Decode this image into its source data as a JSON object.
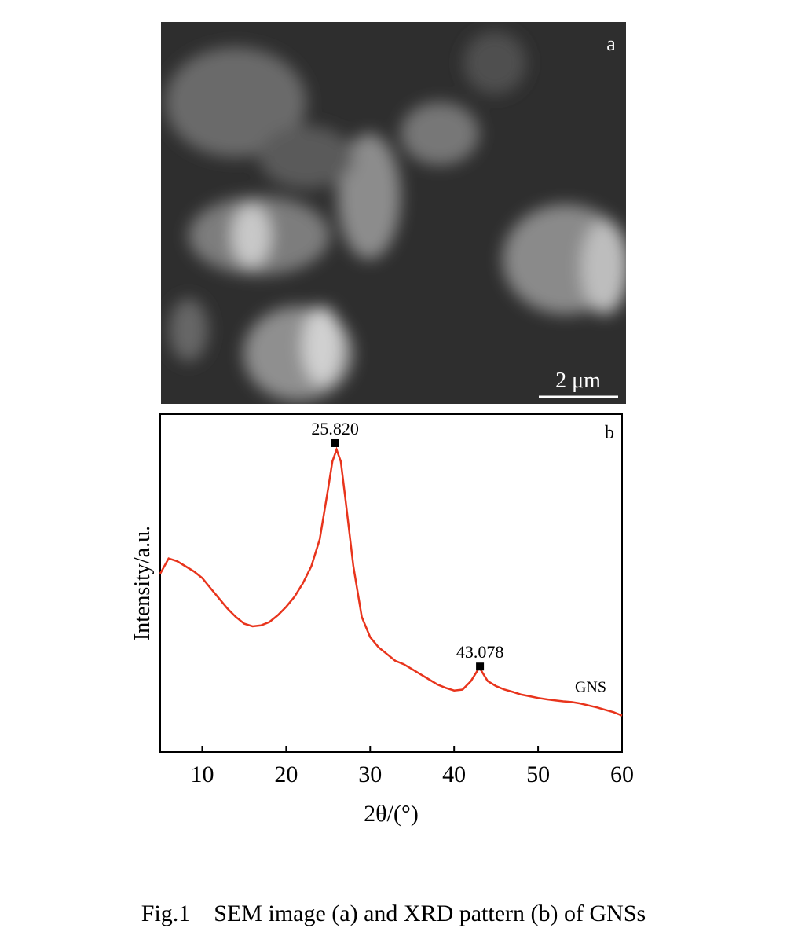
{
  "figure": {
    "caption": "Fig.1    SEM image (a) and XRD pattern (b) of GNSs",
    "panel_a": {
      "label": "a",
      "scale_bar": "2 μm"
    }
  },
  "chart_data": {
    "type": "line",
    "panel_label": "b",
    "x_label": "2θ/(°)",
    "y_label": "Intensity/a.u.",
    "x": [
      5,
      6,
      7,
      8,
      9,
      10,
      11,
      12,
      13,
      14,
      15,
      16,
      17,
      18,
      19,
      20,
      21,
      22,
      23,
      24,
      25,
      25.5,
      26,
      26.5,
      27,
      28,
      29,
      30,
      31,
      32,
      33,
      34,
      35,
      36,
      37,
      38,
      39,
      40,
      41,
      42,
      43,
      44,
      45,
      46,
      47,
      48,
      49,
      50,
      51,
      52,
      53,
      54,
      55,
      56,
      57,
      58,
      59,
      60
    ],
    "series": [
      {
        "name": "GNS",
        "color": "#e8341c",
        "values": [
          52.8,
          57.3,
          56.5,
          55,
          53.5,
          51.5,
          48.5,
          45.5,
          42.5,
          40,
          38,
          37.2,
          37.5,
          38.5,
          40.5,
          43,
          46,
          50,
          55,
          63,
          78,
          86,
          89.5,
          86,
          76,
          55,
          40,
          34,
          31,
          29,
          27,
          26,
          24.5,
          23,
          21.5,
          20,
          19,
          18.2,
          18.5,
          21,
          25,
          21,
          19.5,
          18.5,
          17.8,
          17,
          16.5,
          16,
          15.6,
          15.3,
          15,
          14.8,
          14.4,
          13.8,
          13.2,
          12.5,
          11.8,
          10.8
        ]
      }
    ],
    "annotations": [
      {
        "text": "25.820",
        "x": 25.82,
        "y": 91.4
      },
      {
        "text": "43.078",
        "x": 43.078,
        "y": 25.3
      }
    ],
    "xlim": [
      5,
      60
    ],
    "ylim": [
      0,
      100
    ],
    "xticks": [
      10,
      20,
      30,
      40,
      50,
      60
    ]
  }
}
